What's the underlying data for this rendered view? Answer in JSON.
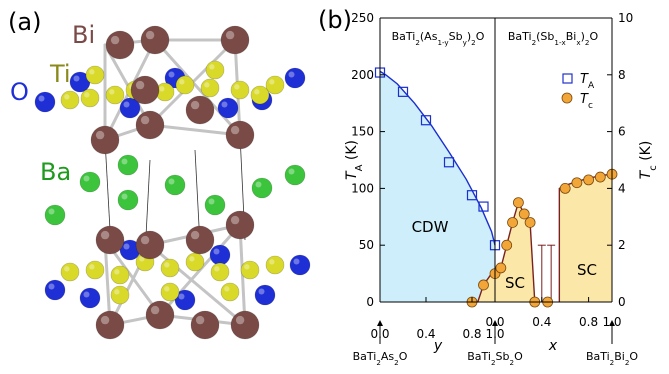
{
  "panel_a": {
    "label": "(a)",
    "atoms": [
      {
        "symbol": "Bi",
        "color": "#7a4b46"
      },
      {
        "symbol": "Ti",
        "color": "#8a8a1a"
      },
      {
        "symbol": "O",
        "color": "#1f2fd6"
      },
      {
        "symbol": "Ba",
        "color": "#1e9a1e"
      }
    ]
  },
  "panel_b": {
    "label": "(b)",
    "left_title_parts": [
      "BaTi",
      "2",
      "(As",
      "1-y",
      "Sb",
      "y",
      ")",
      "2",
      "O"
    ],
    "right_title_parts": [
      "BaTi",
      "2",
      "(Sb",
      "1-x",
      "Bi",
      "x",
      ")",
      "2",
      "O"
    ],
    "left_axis_label": "T",
    "left_axis_sub": "A",
    "left_axis_unit": " (K)",
    "right_axis_label": "T",
    "right_axis_sub": "c",
    "right_axis_unit": " (K)",
    "x_label_left": "y",
    "x_label_right": "x",
    "left_ticks": [
      "0",
      "50",
      "100",
      "150",
      "200",
      "250"
    ],
    "right_ticks": [
      "0",
      "2",
      "4",
      "6",
      "8",
      "10"
    ],
    "x_ticks_left": [
      "0.0",
      "0.4",
      "0.8"
    ],
    "x_ticks_right": [
      "0.0",
      "0.4",
      "0.8"
    ],
    "boundary_tick": "1.0",
    "end_tick": "1.0",
    "compounds": [
      {
        "name": [
          "BaTi",
          "2",
          "As",
          "2",
          "O"
        ]
      },
      {
        "name": [
          "BaTi",
          "2",
          "Sb",
          "2",
          "O"
        ]
      },
      {
        "name": [
          "BaTi",
          "2",
          "Bi",
          "2",
          "O"
        ]
      }
    ],
    "region_labels": {
      "cdw": "CDW",
      "sc_left": "SC",
      "sc_right": "SC"
    },
    "legend": [
      {
        "symbol": "T",
        "sub": "A",
        "marker": "open-square",
        "color": "#2233cc"
      },
      {
        "symbol": "T",
        "sub": "c",
        "marker": "filled-circle",
        "color": "#f0a030"
      }
    ],
    "colors": {
      "cdw_fill": "#cdeefa",
      "sc_fill": "#fbe8a8",
      "ta_line": "#1a2fd0",
      "tc_line": "#7a2020"
    }
  },
  "chart_data": [
    {
      "type": "scatter",
      "title": "BaTi2(As1-ySby)2O",
      "xlabel": "y",
      "ylabel": "TA (K)",
      "xlim": [
        0,
        1.0
      ],
      "ylim": [
        0,
        250
      ],
      "series": [
        {
          "name": "TA",
          "x": [
            0.0,
            0.2,
            0.4,
            0.6,
            0.8,
            0.9,
            1.0
          ],
          "y": [
            202,
            185,
            160,
            123,
            94,
            84,
            50
          ]
        }
      ]
    },
    {
      "type": "line",
      "title": "BaTi2(Sb1-xBix)2O",
      "xlabel": "x",
      "ylabel": "Tc (K)",
      "xlim": [
        0,
        1.0
      ],
      "ylim": [
        0,
        10
      ],
      "series": [
        {
          "name": "Tc",
          "x": [
            0.0,
            0.05,
            0.1,
            0.15,
            0.2,
            0.25,
            0.3,
            0.55,
            0.6,
            0.7,
            0.8,
            0.9,
            1.0
          ],
          "y": [
            1.0,
            1.2,
            2.0,
            2.8,
            3.5,
            3.1,
            2.8,
            0,
            4.0,
            4.2,
            4.3,
            4.4,
            4.5
          ]
        }
      ]
    },
    {
      "type": "scatter",
      "title": "BaTi2(As1-ySby)2O",
      "xlabel": "y",
      "ylabel": "Tc (K)",
      "xlim": [
        0,
        1.0
      ],
      "ylim": [
        0,
        10
      ],
      "series": [
        {
          "name": "Tc",
          "x": [
            0.8,
            0.9
          ],
          "y": [
            0.0,
            0.6
          ]
        }
      ]
    }
  ]
}
